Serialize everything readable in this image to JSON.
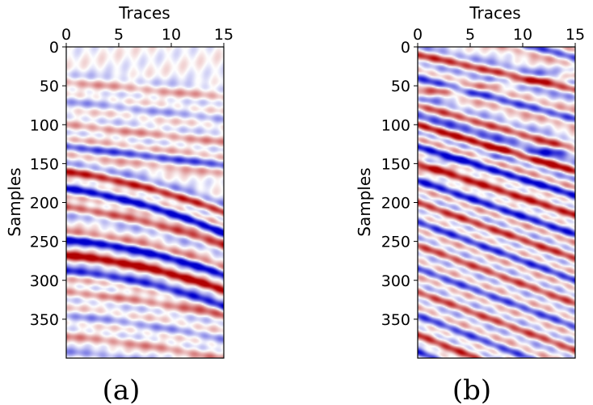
{
  "chart_data": [
    {
      "type": "heatmap",
      "panel_label": "(a)",
      "xlabel": "Traces",
      "ylabel": "Samples",
      "xlim": [
        0,
        15
      ],
      "ylim": [
        400,
        0
      ],
      "x_ticks": [
        0,
        5,
        10,
        15
      ],
      "y_ticks": [
        0,
        50,
        100,
        150,
        200,
        250,
        300,
        350
      ],
      "colormap": "seismic",
      "colors": {
        "negative": "#0000cc",
        "zero": "#ffffff",
        "positive": "#b00000"
      },
      "grid": false,
      "legend": "none",
      "events": [
        {
          "t0": 45,
          "slope": 1.3,
          "curve": 0.0,
          "amp": 0.35
        },
        {
          "t0": 70,
          "slope": 1.5,
          "curve": 0.0,
          "amp": -0.35
        },
        {
          "t0": 100,
          "slope": 1.5,
          "curve": 0.0,
          "amp": 0.4
        },
        {
          "t0": 128,
          "slope": 1.6,
          "curve": 0.0,
          "amp": -0.7
        },
        {
          "t0": 160,
          "slope": 2.0,
          "curve": 0.1,
          "amp": 0.85
        },
        {
          "t0": 182,
          "slope": 2.0,
          "curve": 0.12,
          "amp": -1.0
        },
        {
          "t0": 206,
          "slope": 1.8,
          "curve": 0.1,
          "amp": 0.6
        },
        {
          "t0": 248,
          "slope": 1.2,
          "curve": 0.12,
          "amp": -1.0
        },
        {
          "t0": 268,
          "slope": 1.2,
          "curve": 0.12,
          "amp": 1.0
        },
        {
          "t0": 288,
          "slope": 1.2,
          "curve": 0.12,
          "amp": -0.75
        },
        {
          "t0": 315,
          "slope": 1.3,
          "curve": 0.05,
          "amp": 0.45
        },
        {
          "t0": 345,
          "slope": 1.3,
          "curve": 0.05,
          "amp": -0.4
        },
        {
          "t0": 372,
          "slope": 1.2,
          "curve": 0.05,
          "amp": 0.4
        },
        {
          "t0": 392,
          "slope": 1.2,
          "curve": 0.05,
          "amp": -0.35
        }
      ]
    },
    {
      "type": "heatmap",
      "panel_label": "(b)",
      "xlabel": "Traces",
      "ylabel": "Samples",
      "xlim": [
        0,
        15
      ],
      "ylim": [
        400,
        0
      ],
      "x_ticks": [
        0,
        5,
        10,
        15
      ],
      "y_ticks": [
        0,
        50,
        100,
        150,
        200,
        250,
        300,
        350
      ],
      "colormap": "seismic",
      "colors": {
        "negative": "#0000cc",
        "zero": "#ffffff",
        "positive": "#b00000"
      },
      "grid": false,
      "legend": "none",
      "events": [
        {
          "t0": 10,
          "slope": 3.0,
          "curve": 0.0,
          "amp": 0.8
        },
        {
          "t0": 40,
          "slope": 3.5,
          "curve": 0.0,
          "amp": -0.7
        },
        {
          "t0": 75,
          "slope": 3.8,
          "curve": 0.0,
          "amp": 0.7
        },
        {
          "t0": 100,
          "slope": 4.0,
          "curve": 0.0,
          "amp": 1.0
        },
        {
          "t0": 128,
          "slope": 4.2,
          "curve": 0.0,
          "amp": -1.0
        },
        {
          "t0": 150,
          "slope": 4.4,
          "curve": 0.0,
          "amp": 0.9
        },
        {
          "t0": 172,
          "slope": 4.6,
          "curve": 0.0,
          "amp": -0.9
        },
        {
          "t0": 200,
          "slope": 4.8,
          "curve": 0.0,
          "amp": 0.8
        },
        {
          "t0": 225,
          "slope": 5.0,
          "curve": 0.0,
          "amp": -0.8
        },
        {
          "t0": 255,
          "slope": 5.0,
          "curve": 0.0,
          "amp": 0.7
        },
        {
          "t0": 285,
          "slope": 5.0,
          "curve": 0.0,
          "amp": -0.7
        },
        {
          "t0": 315,
          "slope": 5.0,
          "curve": 0.0,
          "amp": 0.7
        },
        {
          "t0": 345,
          "slope": 5.2,
          "curve": 0.0,
          "amp": -0.7
        },
        {
          "t0": 370,
          "slope": 5.4,
          "curve": 0.0,
          "amp": 0.8
        },
        {
          "t0": 392,
          "slope": 5.6,
          "curve": 0.0,
          "amp": -0.8
        },
        {
          "t0": -40,
          "slope": 3.6,
          "curve": 0.0,
          "amp": -0.7
        },
        {
          "t0": -80,
          "slope": 3.6,
          "curve": 0.0,
          "amp": 0.7
        },
        {
          "t0": 60,
          "slope": -1.5,
          "curve": 0.0,
          "amp": 0.35
        },
        {
          "t0": 150,
          "slope": -1.2,
          "curve": 0.0,
          "amp": -0.3
        }
      ]
    }
  ]
}
